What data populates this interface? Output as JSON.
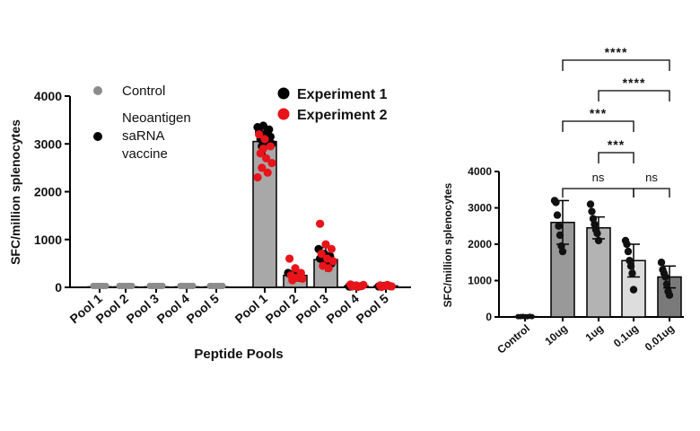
{
  "chart_data": [
    {
      "type": "bar",
      "ylabel": "SFC/million splenocytes",
      "xlabel": "Peptide Pools",
      "ylim": [
        0,
        4000
      ],
      "yticks": [
        0,
        1000,
        2000,
        3000,
        4000
      ],
      "group_legend": [
        {
          "label": "Control",
          "color": "#8c8c8c"
        },
        {
          "label": "Neoantigen saRNA vaccine",
          "lines": [
            "Neoantigen",
            "saRNA",
            "vaccine"
          ],
          "color": "#000000"
        }
      ],
      "experiment_legend": [
        {
          "label": "Experiment 1",
          "color": "#000000"
        },
        {
          "label": "Experiment 2",
          "color": "#e8141a"
        }
      ],
      "legend_position": "top",
      "groups": [
        {
          "name": "Control",
          "categories": [
            "Pool 1",
            "Pool 2",
            "Pool 3",
            "Pool 4",
            "Pool 5"
          ],
          "values": [
            10,
            10,
            10,
            10,
            10
          ],
          "bar_fill": "#ffffff",
          "point_color": "#8c8c8c"
        },
        {
          "name": "Neoantigen saRNA vaccine",
          "categories": [
            "Pool 1",
            "Pool 2",
            "Pool 3",
            "Pool 4",
            "Pool 5"
          ],
          "values": [
            3050,
            250,
            580,
            30,
            30
          ],
          "bar_fill": "#a8a8a8"
        }
      ],
      "points": {
        "experiment_1": [
          [
            3350,
            3380,
            3300,
            3250,
            3200,
            3150,
            3100,
            3050,
            3000,
            2950,
            3280
          ],
          [
            300,
            250,
            200,
            280,
            220
          ],
          [
            800,
            700,
            650,
            600,
            550,
            500
          ],
          [
            20,
            30,
            25,
            15
          ],
          [
            20,
            30,
            25
          ]
        ],
        "experiment_2": [
          [
            3200,
            3100,
            2950,
            2800,
            2700,
            2600,
            2500,
            2400,
            2300,
            2900
          ],
          [
            600,
            400,
            300,
            250,
            200,
            180,
            150
          ],
          [
            1330,
            900,
            800,
            700,
            600,
            550,
            450,
            400
          ],
          [
            60,
            40,
            30,
            20,
            10,
            50
          ],
          [
            40,
            30,
            20,
            10,
            50
          ]
        ]
      }
    },
    {
      "type": "bar",
      "ylabel": "SFC/million splenocytes",
      "xlabel": "",
      "ylim": [
        0,
        4000
      ],
      "yticks": [
        0,
        1000,
        2000,
        3000,
        4000
      ],
      "categories": [
        "Control",
        "10ug",
        "1ug",
        "0.1ug",
        "0.01ug"
      ],
      "values": [
        10,
        2600,
        2450,
        1550,
        1100
      ],
      "errors": [
        10,
        600,
        300,
        450,
        300
      ],
      "bar_fills": [
        "#ffffff",
        "#999999",
        "#b3b3b3",
        "#dddddd",
        "#7a7a7a"
      ],
      "points": [
        [
          10,
          10,
          15,
          10,
          5,
          20,
          10
        ],
        [
          3200,
          3150,
          2800,
          2500,
          2250,
          1950,
          1800
        ],
        [
          3100,
          2900,
          2700,
          2550,
          2400,
          2300,
          2100
        ],
        [
          2100,
          2000,
          1800,
          1550,
          1400,
          1200,
          750
        ],
        [
          1500,
          1300,
          1200,
          1100,
          900,
          700,
          600
        ]
      ],
      "significance": [
        {
          "from": 1,
          "to": 3,
          "label": "ns",
          "level": 1
        },
        {
          "from": 3,
          "to": 4,
          "label": "ns",
          "level": 1
        },
        {
          "from": 2,
          "to": 3,
          "label": "***",
          "level": 2
        },
        {
          "from": 1,
          "to": 3,
          "label": "***",
          "level": 3
        },
        {
          "from": 2,
          "to": 4,
          "label": "****",
          "level": 4
        },
        {
          "from": 1,
          "to": 4,
          "label": "****",
          "level": 5
        }
      ]
    }
  ]
}
